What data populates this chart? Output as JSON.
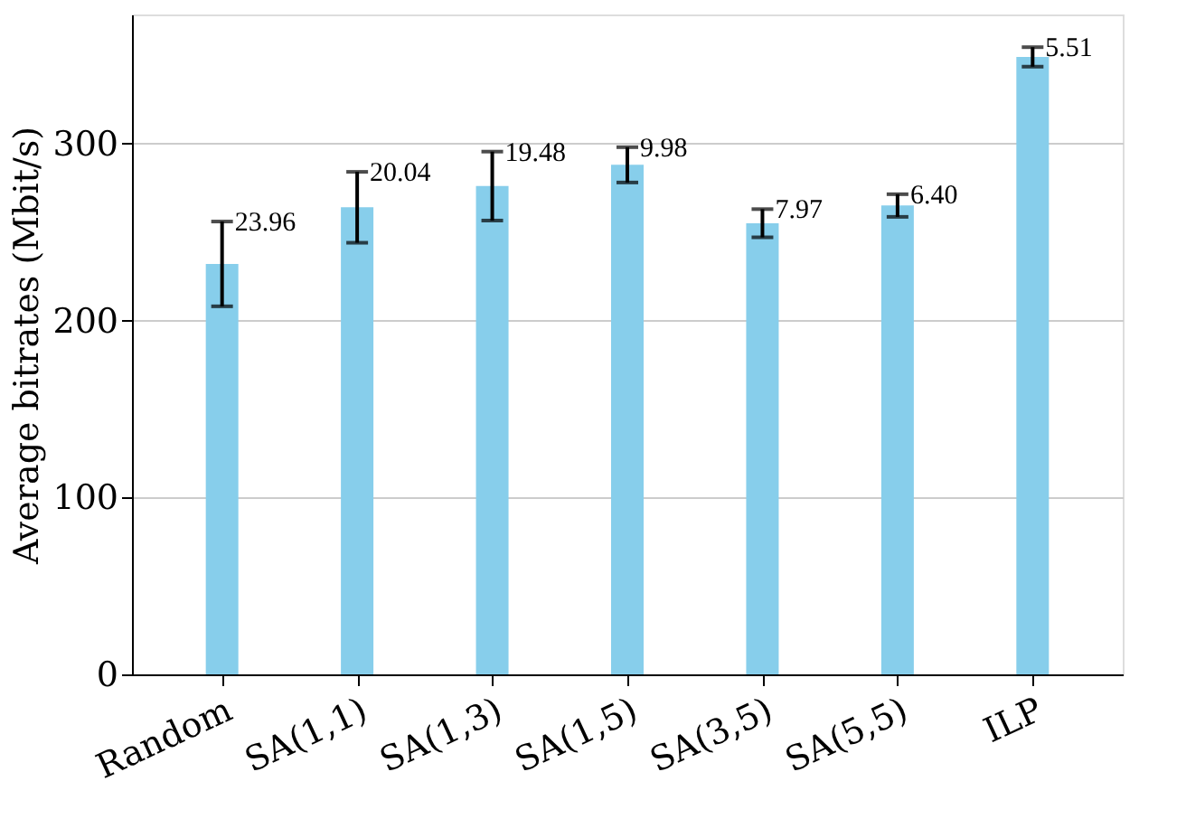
{
  "chart_data": {
    "type": "bar",
    "ylabel": "Average bitrates (Mbit/s)",
    "categories": [
      "Random",
      "SA(1,1)",
      "SA(1,3)",
      "SA(1,5)",
      "SA(3,5)",
      "SA(5,5)",
      "ILP"
    ],
    "values": [
      232,
      264,
      276,
      288,
      255,
      265,
      349
    ],
    "errors": [
      23.96,
      20.04,
      19.48,
      9.98,
      7.97,
      6.4,
      5.51
    ],
    "color": "#87ceeb",
    "ylim": [
      0,
      373
    ],
    "yticks": [
      0,
      100,
      200,
      300
    ],
    "grid": "y",
    "annotations": [
      {
        "text": "23.96",
        "x": "Random",
        "y": 255.96
      },
      {
        "text": "20.04",
        "x": "SA(1,1)",
        "y": 284.04
      },
      {
        "text": "19.48",
        "x": "SA(1,3)",
        "y": 295.48
      },
      {
        "text": "9.98",
        "x": "SA(1,5)",
        "y": 297.98
      },
      {
        "text": "7.97",
        "x": "SA(3,5)",
        "y": 262.97
      },
      {
        "text": "6.40",
        "x": "SA(5,5)",
        "y": 271.4
      },
      {
        "text": "5.51",
        "x": "ILP",
        "y": 354.51
      }
    ]
  }
}
